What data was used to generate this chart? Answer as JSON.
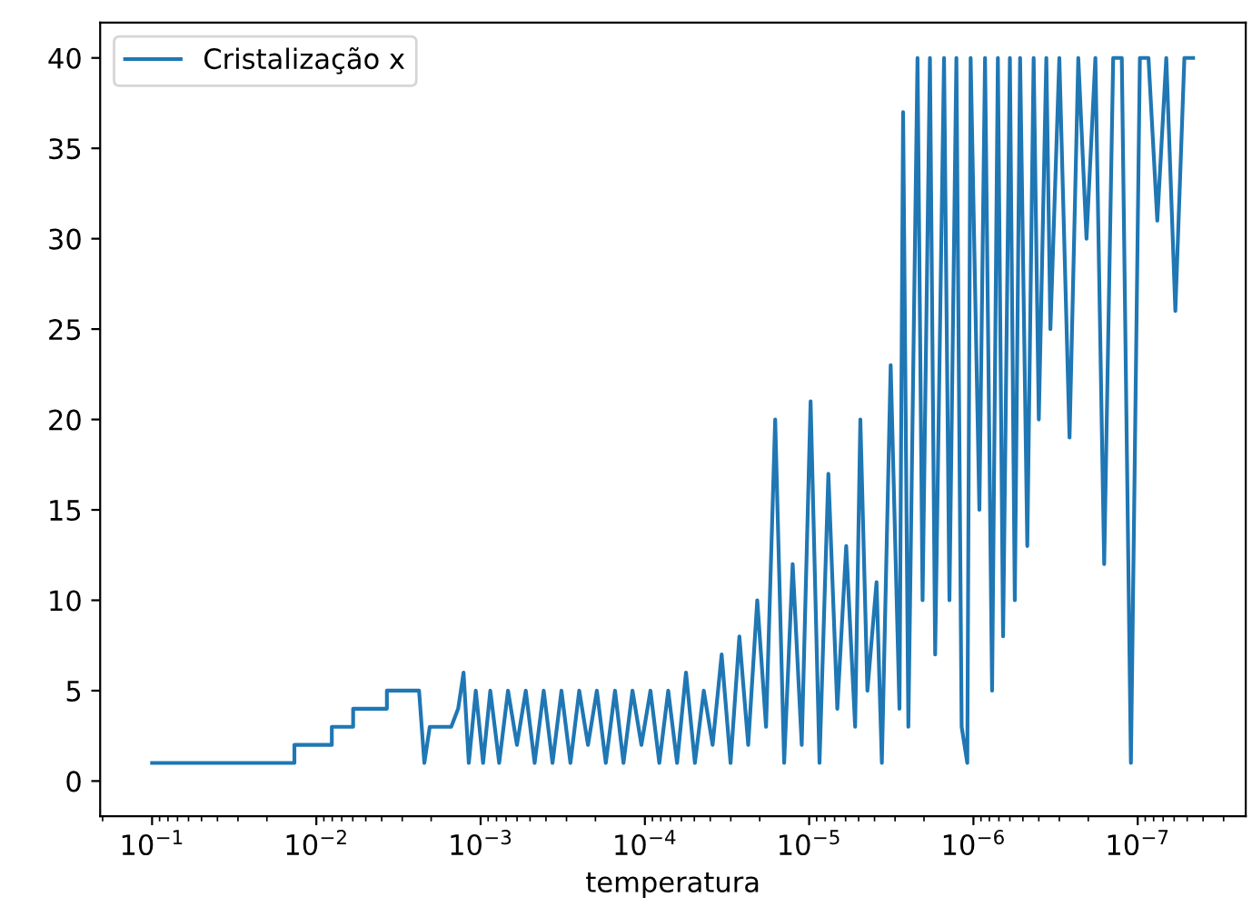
{
  "chart_data": {
    "type": "line",
    "xlabel": "temperatura",
    "log": "x",
    "legend": "top left",
    "grid": false,
    "marker": "none",
    "line_style": "solid",
    "xlim": [
      0.207,
      2.2e-08
    ],
    "ylim": [
      -1.95,
      41.95
    ],
    "xticks": [
      {
        "value": 0.1,
        "label": "10$^{−1}$"
      },
      {
        "value": 0.01,
        "label": "10$^{−2}$"
      },
      {
        "value": 0.001,
        "label": "10$^{−3}$"
      },
      {
        "value": 0.0001,
        "label": "10$^{−4}$"
      },
      {
        "value": 1e-05,
        "label": "10$^{−5}$"
      },
      {
        "value": 1e-06,
        "label": "10$^{−6}$"
      },
      {
        "value": 1e-07,
        "label": "10$^{−7}$"
      }
    ],
    "yticks": [
      0,
      5,
      10,
      15,
      20,
      25,
      30,
      35,
      40
    ],
    "series": [
      {
        "name": "Cristalização x",
        "color": "#1f77b4",
        "x": [
          0.1,
          0.0136,
          0.0136,
          0.00805,
          0.00805,
          0.00597,
          0.00597,
          0.00372,
          0.00372,
          0.00237,
          0.0022,
          0.00204,
          0.00151,
          0.00137,
          0.00127,
          0.00118,
          0.00107,
          0.000966,
          0.000873,
          0.000771,
          0.000681,
          0.000601,
          0.000531,
          0.000469,
          0.000413,
          0.000365,
          0.000322,
          0.000284,
          0.000251,
          0.000222,
          0.000196,
          0.000173,
          0.000152,
          0.000135,
          0.000119,
          0.000105,
          9.25e-05,
          8.17e-05,
          7.21e-05,
          6.37e-05,
          5.62e-05,
          4.96e-05,
          4.38e-05,
          3.87e-05,
          3.41e-05,
          3.01e-05,
          2.66e-05,
          2.35e-05,
          2.07e-05,
          1.83e-05,
          1.61e-05,
          1.42e-05,
          1.26e-05,
          1.11e-05,
          9.8e-06,
          8.65e-06,
          7.64e-06,
          6.74e-06,
          5.95e-06,
          5.25e-06,
          4.88e-06,
          4.42e-06,
          3.89e-06,
          3.61e-06,
          3.19e-06,
          2.82e-06,
          2.68e-06,
          2.49e-06,
          2.19e-06,
          2.04e-06,
          1.84e-06,
          1.71e-06,
          1.51e-06,
          1.4e-06,
          1.27e-06,
          1.18e-06,
          1.09e-06,
          1.04e-06,
          9.2e-07,
          8.5e-07,
          7.7e-07,
          7.1e-07,
          6.6e-07,
          6e-07,
          5.6e-07,
          5.2e-07,
          4.7e-07,
          4.3e-07,
          4e-07,
          3.6e-07,
          3.4e-07,
          3e-07,
          2.6e-07,
          2.3e-07,
          2.05e-07,
          1.81e-07,
          1.6e-07,
          1.41e-07,
          1.25e-07,
          1.1e-07,
          9.7e-08,
          8.6e-08,
          7.6e-08,
          6.7e-08,
          5.9e-08,
          5.2e-08,
          4.6e-08
        ],
        "values": [
          1,
          1,
          2,
          2,
          3,
          3,
          4,
          4,
          5,
          5,
          1,
          3,
          3,
          4,
          6,
          1,
          5,
          1,
          5,
          1,
          5,
          2,
          5,
          1,
          5,
          1,
          5,
          1,
          5,
          2,
          5,
          1,
          5,
          1,
          5,
          2,
          5,
          1,
          5,
          1,
          6,
          1,
          5,
          2,
          7,
          1,
          8,
          2,
          10,
          3,
          20,
          1,
          12,
          2,
          21,
          1,
          17,
          4,
          13,
          3,
          20,
          5,
          11,
          1,
          23,
          4,
          37,
          3,
          40,
          10,
          40,
          7,
          40,
          10,
          40,
          3,
          1,
          40,
          15,
          40,
          5,
          40,
          8,
          40,
          10,
          40,
          13,
          40,
          20,
          40,
          25,
          40,
          19,
          40,
          30,
          40,
          12,
          40,
          40,
          1,
          40,
          40,
          31,
          40,
          26,
          40,
          40
        ]
      }
    ]
  }
}
